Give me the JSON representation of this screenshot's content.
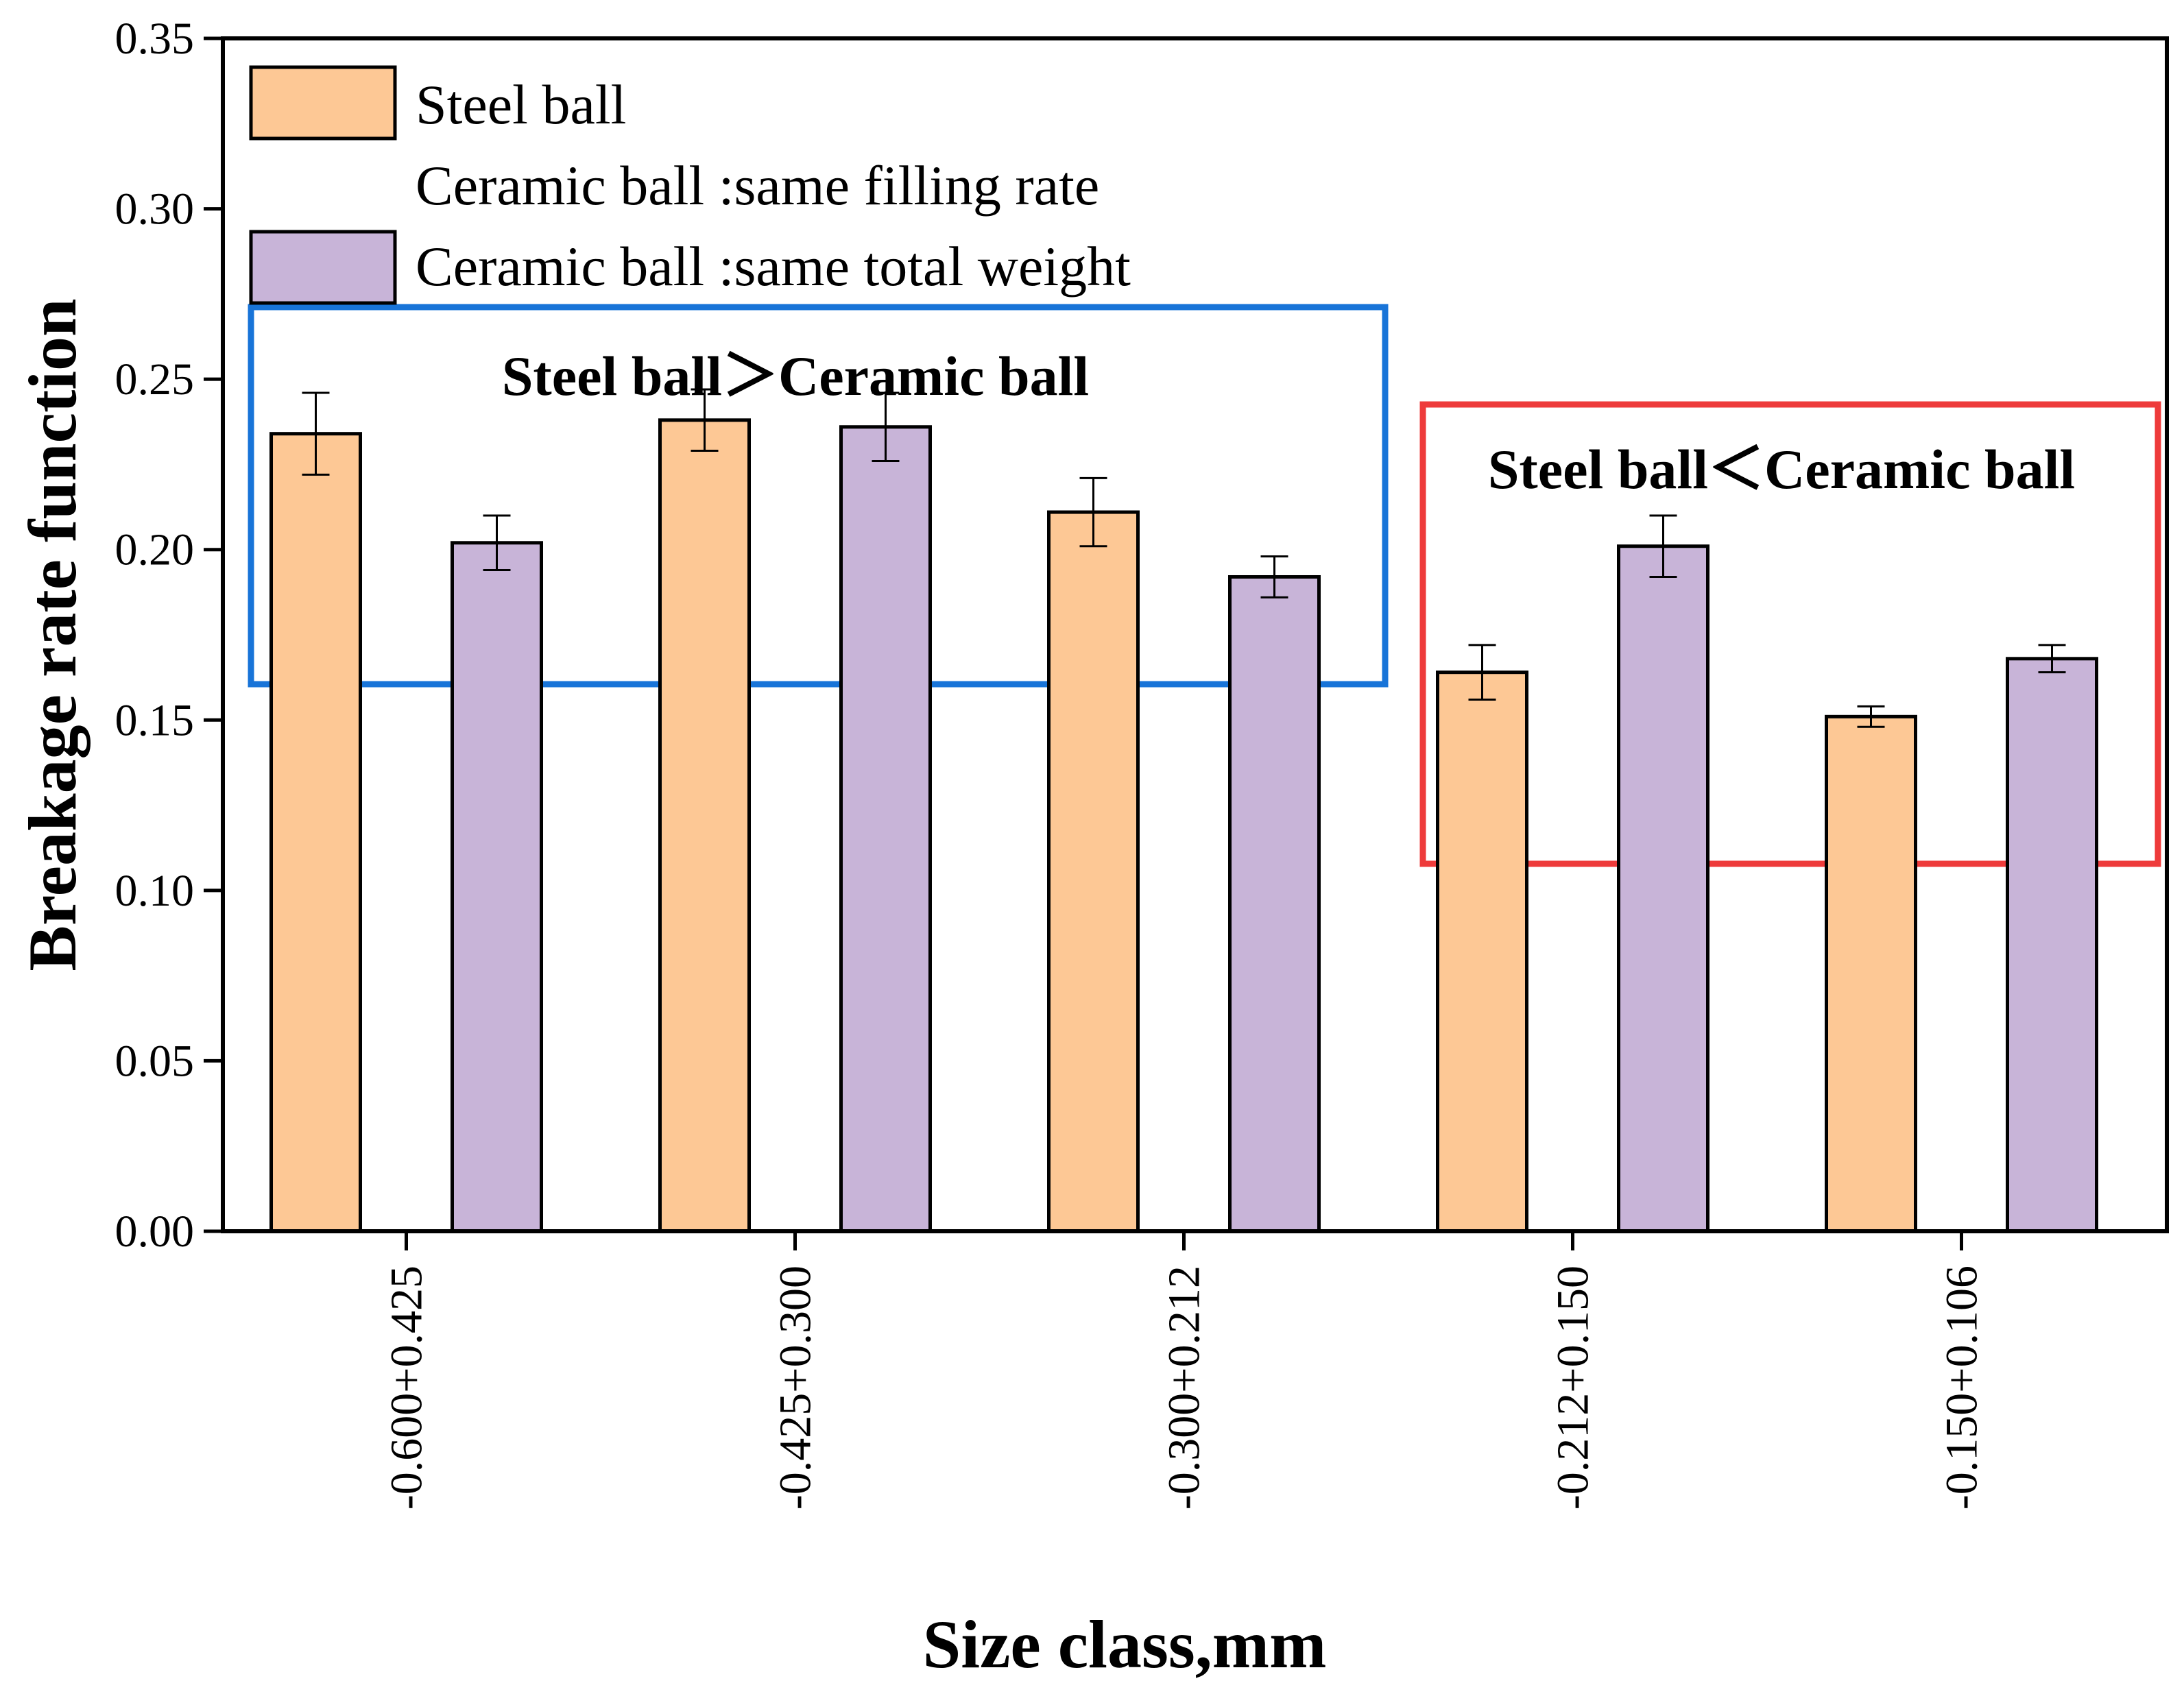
{
  "chart_data": {
    "type": "bar",
    "xlabel": "Size class,mm",
    "ylabel": "Breakage rate function",
    "ylim": [
      0,
      0.35
    ],
    "yticks": [
      "0.00",
      "0.05",
      "0.10",
      "0.15",
      "0.20",
      "0.25",
      "0.30",
      "0.35"
    ],
    "categories": [
      "-0.600+0.425",
      "-0.425+0.300",
      "-0.300+0.212",
      "-0.212+0.150",
      "-0.150+0.106"
    ],
    "series": [
      {
        "name": "Steel ball",
        "color": "#FDC895",
        "values": [
          0.234,
          0.238,
          0.211,
          0.164,
          0.151
        ],
        "errors": [
          0.012,
          0.009,
          0.01,
          0.008,
          0.003
        ]
      },
      {
        "name": "Ceramic ball :same filling rate",
        "color": "none",
        "values": [
          null,
          null,
          null,
          null,
          null
        ],
        "errors": [
          null,
          null,
          null,
          null,
          null
        ]
      },
      {
        "name": "Ceramic ball :same total weight",
        "color": "#C8B4D8",
        "values": [
          0.202,
          0.236,
          0.192,
          0.201,
          0.168
        ],
        "errors": [
          0.008,
          0.01,
          0.006,
          0.009,
          0.004
        ]
      }
    ],
    "annotations": [
      {
        "text": "Steel ball＞Ceramic ball",
        "box_color": "#1874D8"
      },
      {
        "text": "Steel ball＜Ceramic ball",
        "box_color": "#EE3B3B"
      }
    ],
    "legend_position": "top-left"
  }
}
